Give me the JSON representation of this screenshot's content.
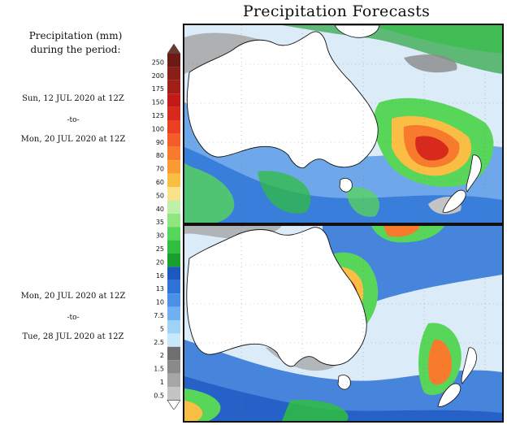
{
  "title": "Precipitation Forecasts",
  "legend": {
    "title_line1": "Precipitation (mm)",
    "title_line2": "during the period:",
    "levels": [
      {
        "label": "250",
        "color": "#6e1a14"
      },
      {
        "label": "200",
        "color": "#8a1f1a"
      },
      {
        "label": "175",
        "color": "#a21f18"
      },
      {
        "label": "150",
        "color": "#c21b16"
      },
      {
        "label": "125",
        "color": "#d82a1c"
      },
      {
        "label": "100",
        "color": "#ee3e22"
      },
      {
        "label": "90",
        "color": "#f45c2a"
      },
      {
        "label": "80",
        "color": "#f77a2d"
      },
      {
        "label": "70",
        "color": "#f99a33"
      },
      {
        "label": "60",
        "color": "#fbbe45"
      },
      {
        "label": "50",
        "color": "#fde18a"
      },
      {
        "label": "40",
        "color": "#bdf0a8"
      },
      {
        "label": "35",
        "color": "#8fe57e"
      },
      {
        "label": "30",
        "color": "#58d65a"
      },
      {
        "label": "25",
        "color": "#2fbe40"
      },
      {
        "label": "20",
        "color": "#1b9e30"
      },
      {
        "label": "16",
        "color": "#1d58c2"
      },
      {
        "label": "13",
        "color": "#2d73d8"
      },
      {
        "label": "10",
        "color": "#4a91e6"
      },
      {
        "label": "7.5",
        "color": "#6fb0f0"
      },
      {
        "label": "5",
        "color": "#9fd2f7"
      },
      {
        "label": "2.5",
        "color": "#c8e9fb"
      },
      {
        "label": "2",
        "color": "#6f6f6f"
      },
      {
        "label": "1.5",
        "color": "#8a8a8a"
      },
      {
        "label": "1",
        "color": "#a6a6a6"
      },
      {
        "label": "0.5",
        "color": "#c4c4c4"
      }
    ],
    "top_arrow_color": "#6a3a32",
    "bottom_arrow_color": "#ffffff"
  },
  "periods": [
    {
      "start": "Sun, 12 JUL 2020 at 12Z",
      "separator": "-to-",
      "end": "Mon, 20 JUL 2020 at 12Z"
    },
    {
      "start": "Mon, 20 JUL 2020 at 12Z",
      "separator": "-to-",
      "end": "Tue, 28 JUL 2020 at 12Z"
    }
  ]
}
